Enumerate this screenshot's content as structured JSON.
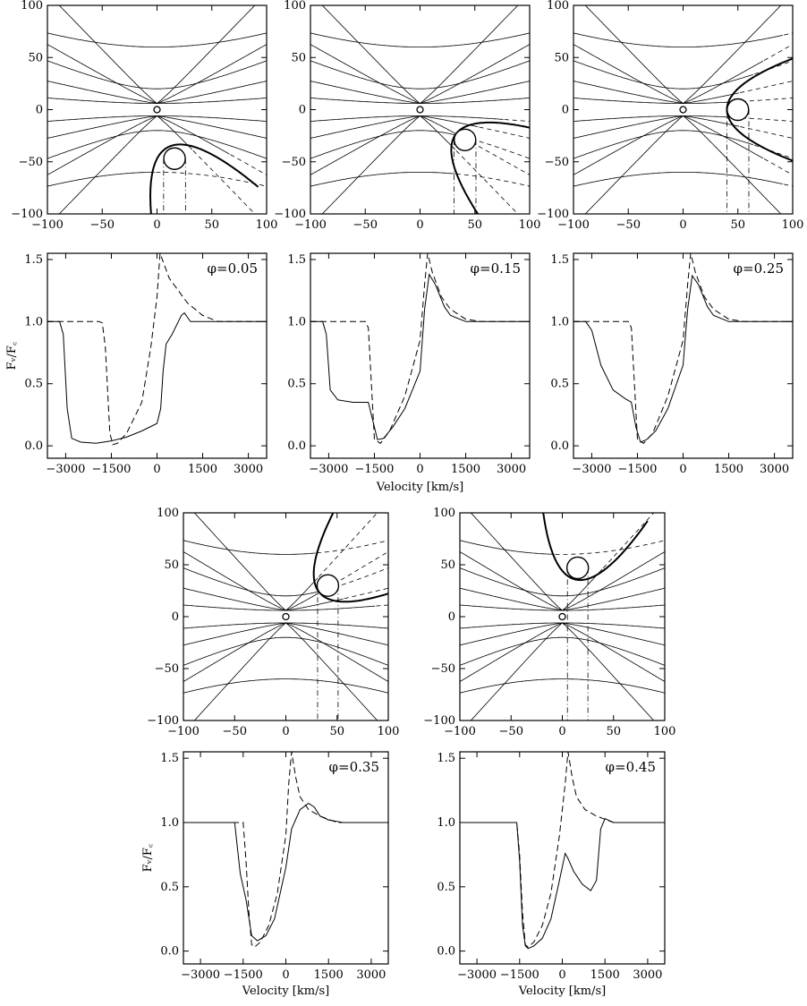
{
  "chart_data": [
    {
      "type": "diagram",
      "panel": "geometry",
      "phase_index": 0,
      "xlim": [
        -100,
        100
      ],
      "ylim": [
        -100,
        100
      ],
      "xticks": [
        -100,
        -50,
        0,
        50,
        100
      ],
      "yticks": [
        -100,
        -50,
        0,
        50,
        100
      ],
      "companion_center": [
        16,
        -47
      ],
      "shock_apex": [
        10,
        -36
      ],
      "shock_opening": "down"
    },
    {
      "type": "diagram",
      "panel": "geometry",
      "phase_index": 1,
      "xlim": [
        -100,
        100
      ],
      "ylim": [
        -100,
        100
      ],
      "xticks": [
        -100,
        -50,
        0,
        50,
        100
      ],
      "yticks": [
        -100,
        -50,
        0,
        50,
        100
      ],
      "companion_center": [
        41,
        -29
      ],
      "shock_apex": [
        33,
        -23
      ],
      "shock_opening": "down-right"
    },
    {
      "type": "diagram",
      "panel": "geometry",
      "phase_index": 2,
      "xlim": [
        -100,
        100
      ],
      "ylim": [
        -100,
        100
      ],
      "xticks": [
        -100,
        -50,
        0,
        50,
        100
      ],
      "yticks": [
        -100,
        -50,
        0,
        50,
        100
      ],
      "companion_center": [
        50,
        0
      ],
      "shock_apex": [
        40,
        0
      ],
      "shock_opening": "right"
    },
    {
      "type": "diagram",
      "panel": "geometry",
      "phase_index": 3,
      "xlim": [
        -100,
        100
      ],
      "ylim": [
        -100,
        100
      ],
      "xticks": [
        -100,
        -50,
        0,
        50,
        100
      ],
      "yticks": [
        -100,
        -50,
        0,
        50,
        100
      ],
      "companion_center": [
        41,
        30
      ],
      "shock_apex": [
        33,
        23
      ],
      "shock_opening": "up-right"
    },
    {
      "type": "diagram",
      "panel": "geometry",
      "phase_index": 4,
      "xlim": [
        -100,
        100
      ],
      "ylim": [
        -100,
        100
      ],
      "xticks": [
        -100,
        -50,
        0,
        50,
        100
      ],
      "yticks": [
        -100,
        -50,
        0,
        50,
        100
      ],
      "companion_center": [
        15,
        47
      ],
      "shock_apex": [
        12,
        36
      ],
      "shock_opening": "up"
    },
    {
      "type": "line",
      "panel": "profile",
      "phase_label": "φ=0.05",
      "xlabel": "",
      "ylabel": "Fᵥ/F꜀",
      "xlim": [
        -3600,
        3600
      ],
      "ylim": [
        -0.1,
        1.55
      ],
      "xticks": [
        -3000,
        -1500,
        0,
        1500,
        3000
      ],
      "yticks": [
        0.0,
        0.5,
        1.0,
        1.5
      ],
      "series": [
        {
          "style": "solid",
          "x": [
            -3600,
            -3200,
            -3080,
            -2950,
            -2800,
            -2500,
            -2000,
            -1500,
            -1000,
            -500,
            0,
            120,
            200,
            300,
            500,
            800,
            900,
            1100,
            1500,
            2000,
            3600
          ],
          "y": [
            1.0,
            1.0,
            0.9,
            0.3,
            0.06,
            0.03,
            0.02,
            0.04,
            0.07,
            0.12,
            0.18,
            0.3,
            0.6,
            0.82,
            0.9,
            1.05,
            1.07,
            1.0,
            1.0,
            1.0,
            1.0
          ]
        },
        {
          "style": "dashed",
          "x": [
            -3600,
            -1900,
            -1800,
            -1700,
            -1550,
            -1450,
            -1300,
            -1000,
            -500,
            -200,
            0,
            100,
            250,
            400,
            700,
            1000,
            1500,
            2000,
            3600
          ],
          "y": [
            1.0,
            1.0,
            0.99,
            0.8,
            0.1,
            0.01,
            0.02,
            0.1,
            0.35,
            0.8,
            1.2,
            1.55,
            1.45,
            1.35,
            1.25,
            1.15,
            1.05,
            1.0,
            1.0
          ]
        }
      ]
    },
    {
      "type": "line",
      "panel": "profile",
      "phase_label": "φ=0.15",
      "xlabel": "",
      "ylabel": "",
      "xlim": [
        -3600,
        3600
      ],
      "ylim": [
        -0.1,
        1.55
      ],
      "xticks": [
        -3000,
        -1500,
        0,
        1500,
        3000
      ],
      "yticks": [
        0.0,
        0.5,
        1.0,
        1.5
      ],
      "series": [
        {
          "style": "solid",
          "x": [
            -3600,
            -3200,
            -3080,
            -2950,
            -2700,
            -2200,
            -1700,
            -1550,
            -1400,
            -1200,
            -900,
            -500,
            0,
            150,
            300,
            500,
            800,
            1000,
            1500,
            2000,
            3600
          ],
          "y": [
            1.0,
            1.0,
            0.9,
            0.45,
            0.37,
            0.35,
            0.35,
            0.2,
            0.05,
            0.06,
            0.15,
            0.3,
            0.6,
            1.1,
            1.38,
            1.3,
            1.12,
            1.05,
            1.0,
            1.0,
            1.0
          ]
        },
        {
          "style": "dashed",
          "x": [
            -3600,
            -1800,
            -1700,
            -1600,
            -1500,
            -1300,
            -1000,
            -500,
            0,
            150,
            250,
            400,
            700,
            1000,
            1500,
            2000,
            3600
          ],
          "y": [
            1.0,
            1.0,
            0.95,
            0.5,
            0.05,
            0.02,
            0.12,
            0.4,
            0.85,
            1.3,
            1.55,
            1.4,
            1.2,
            1.1,
            1.02,
            1.0,
            1.0
          ]
        }
      ]
    },
    {
      "type": "line",
      "panel": "profile",
      "phase_label": "φ=0.25",
      "xlabel": "",
      "ylabel": "",
      "xlim": [
        -3600,
        3600
      ],
      "ylim": [
        -0.1,
        1.55
      ],
      "xticks": [
        -3000,
        -1500,
        0,
        1500,
        3000
      ],
      "yticks": [
        0.0,
        0.5,
        1.0,
        1.5
      ],
      "series": [
        {
          "style": "solid",
          "x": [
            -3600,
            -3200,
            -3000,
            -2700,
            -2300,
            -1900,
            -1700,
            -1550,
            -1400,
            -1200,
            -900,
            -500,
            0,
            150,
            300,
            500,
            800,
            1000,
            1500,
            2000,
            3600
          ],
          "y": [
            1.0,
            1.0,
            0.93,
            0.65,
            0.45,
            0.38,
            0.35,
            0.15,
            0.03,
            0.05,
            0.12,
            0.3,
            0.65,
            1.1,
            1.37,
            1.3,
            1.12,
            1.05,
            1.0,
            1.0,
            1.0
          ]
        },
        {
          "style": "dashed",
          "x": [
            -3600,
            -1800,
            -1700,
            -1600,
            -1500,
            -1300,
            -1000,
            -500,
            0,
            150,
            250,
            400,
            700,
            1000,
            1500,
            2000,
            3600
          ],
          "y": [
            1.0,
            1.0,
            0.95,
            0.5,
            0.05,
            0.02,
            0.1,
            0.4,
            0.85,
            1.3,
            1.55,
            1.4,
            1.2,
            1.1,
            1.02,
            1.0,
            1.0
          ]
        }
      ]
    },
    {
      "type": "line",
      "panel": "profile",
      "phase_label": "φ=0.35",
      "xlabel": "Velocity [km/s]",
      "ylabel": "Fᵥ/F꜀",
      "xlim": [
        -3600,
        3600
      ],
      "ylim": [
        -0.1,
        1.55
      ],
      "xticks": [
        -3000,
        -1500,
        0,
        1500,
        3000
      ],
      "yticks": [
        0.0,
        0.5,
        1.0,
        1.5
      ],
      "series": [
        {
          "style": "solid",
          "x": [
            -3600,
            -1800,
            -1700,
            -1600,
            -1400,
            -1200,
            -1000,
            -700,
            -400,
            0,
            200,
            500,
            800,
            1000,
            1200,
            1500,
            2000,
            3600
          ],
          "y": [
            1.0,
            1.0,
            0.8,
            0.6,
            0.4,
            0.12,
            0.08,
            0.12,
            0.25,
            0.65,
            0.95,
            1.1,
            1.15,
            1.12,
            1.05,
            1.02,
            1.0,
            1.0
          ]
        },
        {
          "style": "dashed",
          "x": [
            -3600,
            -1500,
            -1400,
            -1300,
            -1200,
            -1100,
            -900,
            -600,
            -300,
            0,
            100,
            200,
            350,
            500,
            800,
            1200,
            1800,
            3600
          ],
          "y": [
            1.0,
            1.0,
            0.7,
            0.3,
            0.05,
            0.03,
            0.07,
            0.2,
            0.45,
            0.9,
            1.3,
            1.55,
            1.35,
            1.2,
            1.1,
            1.05,
            1.0,
            1.0
          ]
        }
      ]
    },
    {
      "type": "line",
      "panel": "profile",
      "phase_label": "φ=0.45",
      "xlabel": "Velocity [km/s]",
      "ylabel": "",
      "xlim": [
        -3600,
        3600
      ],
      "ylim": [
        -0.1,
        1.55
      ],
      "xticks": [
        -3000,
        -1500,
        0,
        1500,
        3000
      ],
      "yticks": [
        0.0,
        0.5,
        1.0,
        1.5
      ],
      "series": [
        {
          "style": "solid",
          "x": [
            -3600,
            -1600,
            -1500,
            -1400,
            -1300,
            -1200,
            -1000,
            -700,
            -400,
            -100,
            100,
            200,
            400,
            700,
            1000,
            1200,
            1350,
            1500,
            1800,
            3600
          ],
          "y": [
            1.0,
            1.0,
            0.7,
            0.2,
            0.04,
            0.02,
            0.04,
            0.1,
            0.25,
            0.55,
            0.76,
            0.72,
            0.62,
            0.52,
            0.47,
            0.55,
            0.95,
            1.03,
            1.0,
            1.0
          ]
        },
        {
          "style": "dashed",
          "x": [
            -3600,
            -1600,
            -1500,
            -1400,
            -1300,
            -1200,
            -1000,
            -700,
            -400,
            -100,
            100,
            200,
            350,
            500,
            800,
            1200,
            1800,
            3600
          ],
          "y": [
            1.0,
            1.0,
            0.75,
            0.3,
            0.05,
            0.03,
            0.07,
            0.2,
            0.45,
            0.9,
            1.3,
            1.55,
            1.35,
            1.2,
            1.1,
            1.05,
            1.0,
            1.0
          ]
        }
      ]
    }
  ]
}
